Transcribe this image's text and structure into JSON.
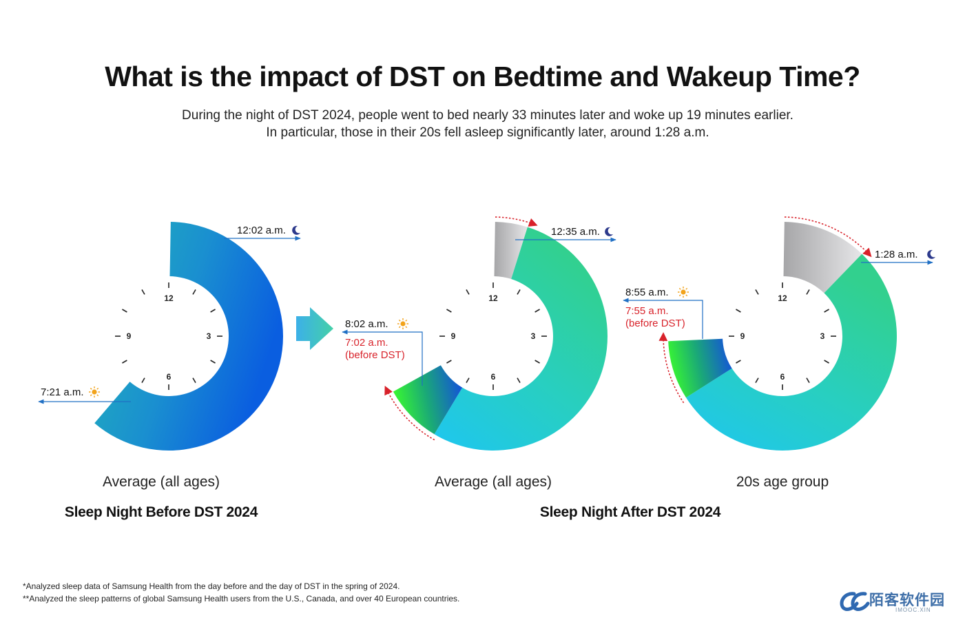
{
  "title": "What is the impact of DST on Bedtime and Wakeup Time?",
  "subtitle_lines": [
    "During the night of DST 2024, people went to bed nearly 33 minutes later and woke up 19 minutes earlier.",
    "In particular, those in their 20s fell asleep significantly later, around 1:28 a.m."
  ],
  "clock_numbers": [
    "12",
    "3",
    "6",
    "9"
  ],
  "charts": [
    {
      "caption": "Average (all ages)",
      "bedtime": "12:02 a.m.",
      "wakeup": "7:21 a.m.",
      "bedtime_hour": 0.033,
      "wakeup_hour": 7.35
    },
    {
      "caption": "Average (all ages)",
      "bedtime": "12:35 a.m.",
      "wakeup": "8:02 a.m.",
      "wakeup_before_dst": "7:02 a.m.",
      "before_dst_note": "(before DST)",
      "bedtime_hour": 0.583,
      "wakeup_hour": 8.033,
      "prev_bedtime_hour": 0.033,
      "prev_wakeup_hour": 7.033
    },
    {
      "caption": "20s age group",
      "bedtime": "1:28 a.m.",
      "wakeup": "8:55 a.m.",
      "wakeup_before_dst": "7:55 a.m.",
      "before_dst_note": "(before DST)",
      "bedtime_hour": 1.467,
      "wakeup_hour": 8.917,
      "prev_bedtime_hour": 0.033,
      "prev_wakeup_hour": 7.917
    }
  ],
  "groups": {
    "before": "Sleep Night Before DST 2024",
    "after": "Sleep Night After DST 2024"
  },
  "footnotes": [
    "*Analyzed sleep data of Samsung Health from the day before and the day of DST in the spring of 2024.",
    "**Analyzed the sleep patterns of global Samsung Health users from the U.S., Canada, and over 40 European countries."
  ],
  "watermark": {
    "text": "陌客软件园",
    "sub": "IMOOC.XIN"
  },
  "colors": {
    "arrow_blue": "#1f6fc4",
    "before_dst_red": "#d8222a",
    "sun": "#f2a31b",
    "moon": "#2d3a8c"
  }
}
